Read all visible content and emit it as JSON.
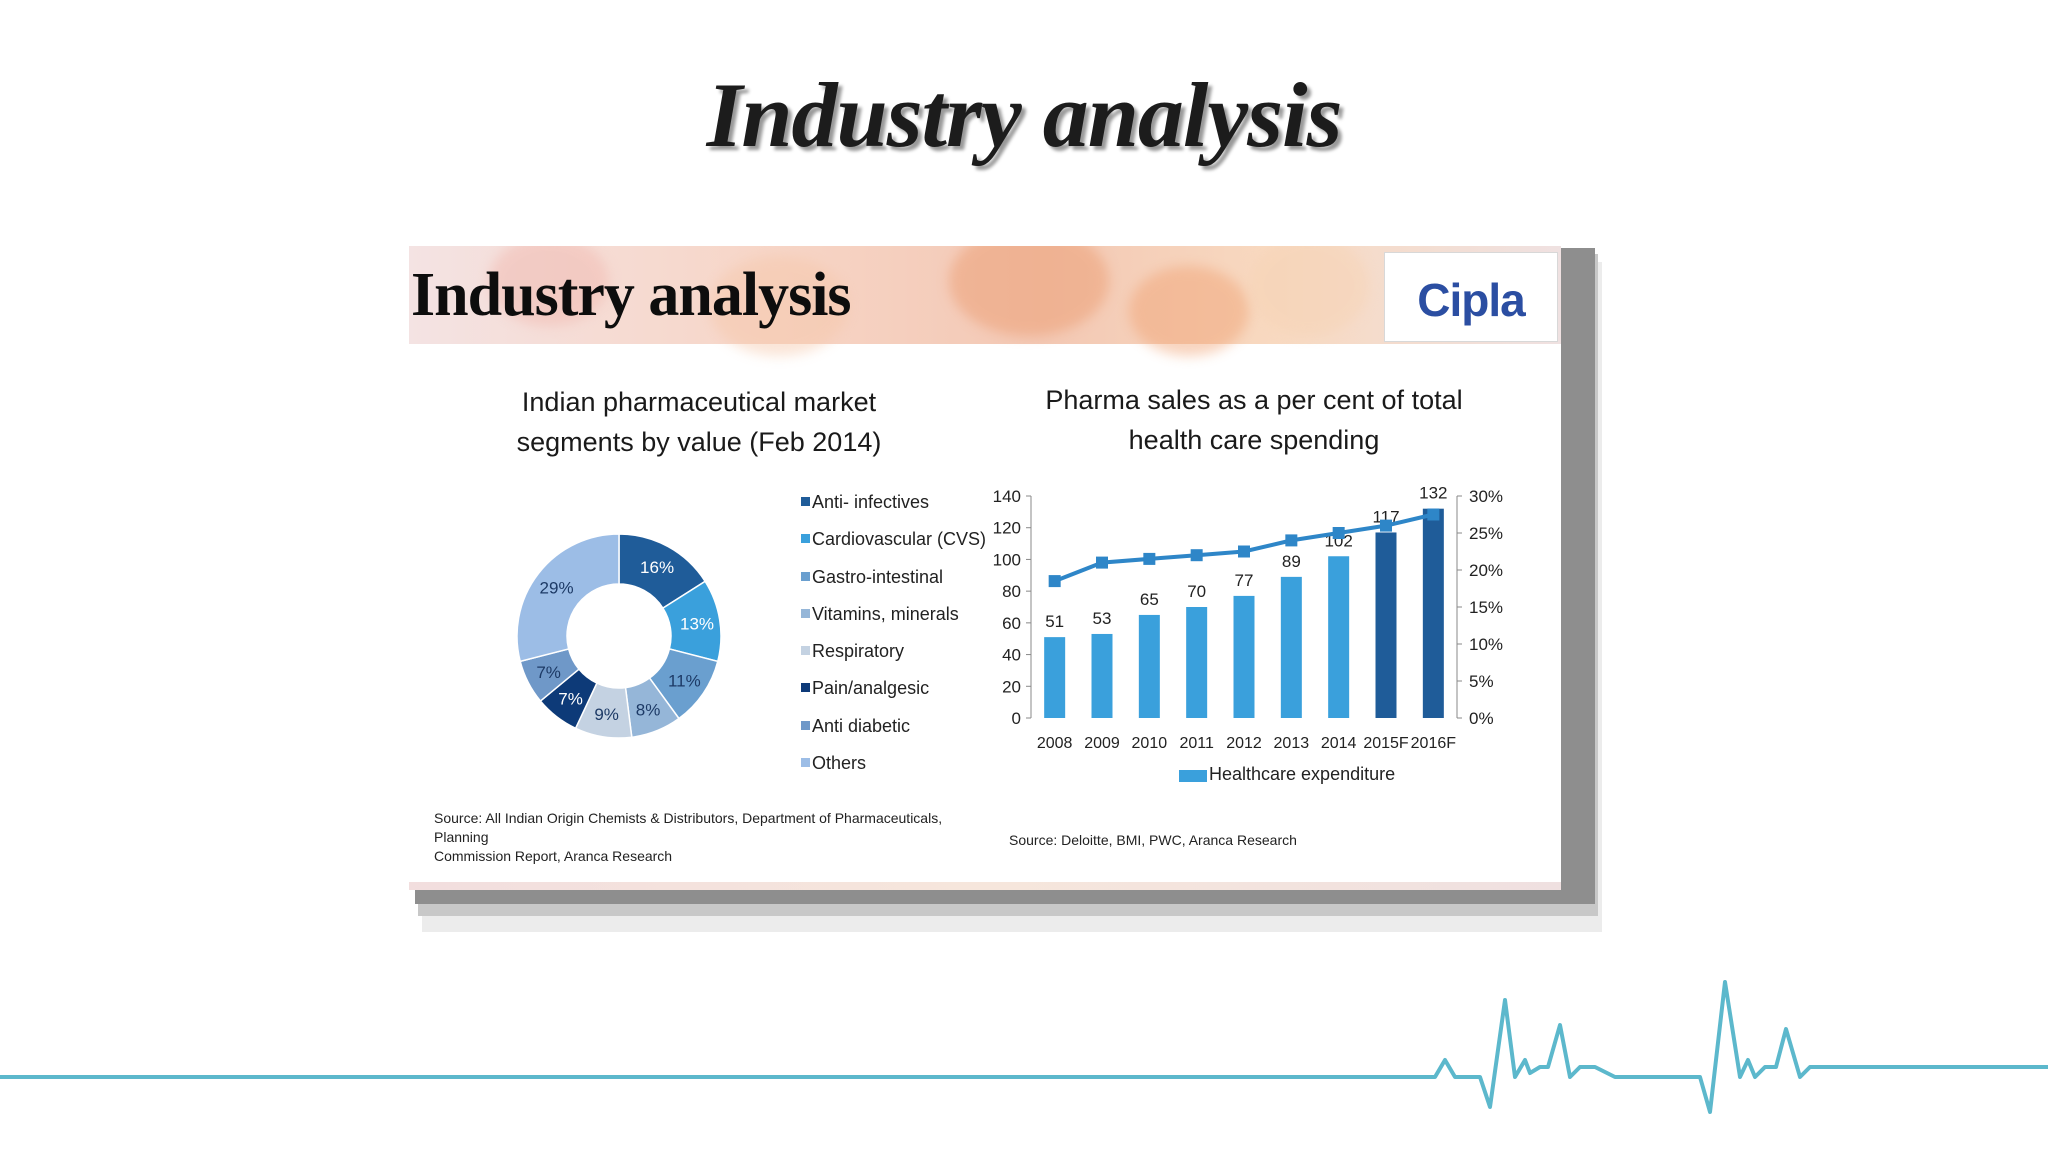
{
  "slide": {
    "title": "Industry analysis"
  },
  "panel": {
    "title": "Industry analysis",
    "logo": "Cipla"
  },
  "pie": {
    "title_line1": "Indian pharmaceutical market",
    "title_line2": "segments by value (Feb 2014)",
    "source_line1": "Source: All Indian Origin Chemists & Distributors, Department of Pharmaceuticals, Planning",
    "source_line2": "Commission Report, Aranca Research"
  },
  "bar": {
    "title_line1": "Pharma sales as a per cent of total",
    "title_line2": "health care spending",
    "source": "Source: Deloitte, BMI, PWC, Aranca Research",
    "legend_label": "Healthcare expenditure"
  },
  "chart_data": [
    {
      "type": "pie",
      "variant": "donut",
      "title": "Indian pharmaceutical market segments by value (Feb 2014)",
      "legend_position": "right",
      "slices": [
        {
          "label": "Anti- infectives",
          "value": 16,
          "display": "16%",
          "color": "#1f5c99"
        },
        {
          "label": "Cardiovascular (CVS)",
          "value": 13,
          "display": "13%",
          "color": "#3aa0dc"
        },
        {
          "label": "Gastro-intestinal",
          "value": 11,
          "display": "11%",
          "color": "#6a9fcf"
        },
        {
          "label": "Vitamins, minerals",
          "value": 8,
          "display": "8%",
          "color": "#95b6d8"
        },
        {
          "label": "Respiratory",
          "value": 9,
          "display": "9%",
          "color": "#c4d2e2"
        },
        {
          "label": "Pain/analgesic",
          "value": 7,
          "display": "7%",
          "color": "#0d3a78"
        },
        {
          "label": "Anti diabetic",
          "value": 7,
          "display": "7%",
          "color": "#6f98c8"
        },
        {
          "label": "Others",
          "value": 29,
          "display": "29%",
          "color": "#9cbde6"
        }
      ]
    },
    {
      "type": "bar",
      "title": "Pharma sales as a per cent of total health care spending",
      "categories": [
        "2008",
        "2009",
        "2010",
        "2011",
        "2012",
        "2013",
        "2014",
        "2015F",
        "2016F"
      ],
      "series": [
        {
          "name": "Healthcare expenditure",
          "type": "bar",
          "axis": "left",
          "values": [
            51,
            53,
            65,
            70,
            77,
            89,
            102,
            117,
            132
          ],
          "labels": [
            "51",
            "53",
            "65",
            "70",
            "77",
            "89",
            "102",
            "117",
            "132"
          ],
          "color": "#3aa0dc",
          "forecast_color": "#1f5c99"
        },
        {
          "type": "line",
          "axis": "right",
          "values": [
            18.5,
            21,
            21.5,
            22,
            22.5,
            24,
            25,
            26,
            27.5
          ],
          "color": "#2e86c8"
        }
      ],
      "ylim": [
        0,
        140
      ],
      "yticks": [
        "0",
        "20",
        "40",
        "60",
        "80",
        "100",
        "120",
        "140"
      ],
      "ylim_right": [
        0,
        30
      ],
      "yticks_right": [
        "0%",
        "5%",
        "10%",
        "15%",
        "20%",
        "25%",
        "30%"
      ],
      "legend_position": "bottom",
      "grid": false
    }
  ]
}
